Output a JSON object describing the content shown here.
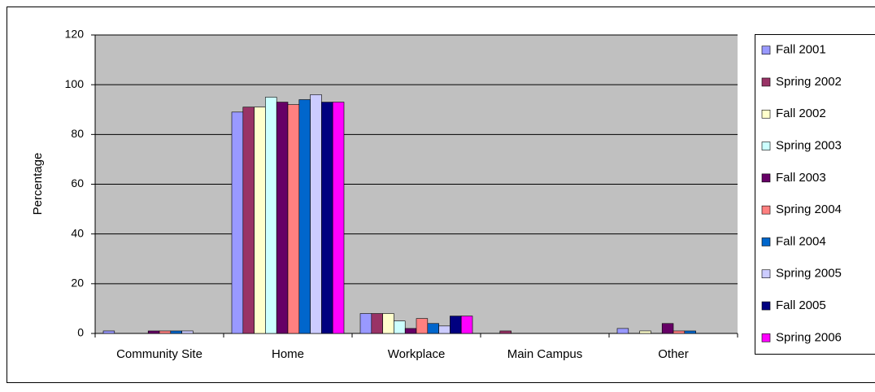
{
  "chart_data": {
    "type": "bar",
    "y_label": "Percentage",
    "categories": [
      "Community Site",
      "Home",
      "Workplace",
      "Main Campus",
      "Other"
    ],
    "series": [
      {
        "name": "Fall 2001",
        "color": "#9999ff",
        "values": [
          1,
          89,
          8,
          0,
          2
        ]
      },
      {
        "name": "Spring 2002",
        "color": "#993366",
        "values": [
          0,
          91,
          8,
          1,
          0
        ]
      },
      {
        "name": "Fall 2002",
        "color": "#ffffcc",
        "values": [
          0,
          91,
          8,
          0,
          1
        ]
      },
      {
        "name": "Spring 2003",
        "color": "#ccffff",
        "values": [
          0,
          95,
          5,
          0,
          0
        ]
      },
      {
        "name": "Fall 2003",
        "color": "#660066",
        "values": [
          1,
          93,
          2,
          0,
          4
        ]
      },
      {
        "name": "Spring 2004",
        "color": "#ff8080",
        "values": [
          1,
          92,
          6,
          0,
          1
        ]
      },
      {
        "name": "Fall 2004",
        "color": "#0066cc",
        "values": [
          1,
          94,
          4,
          0,
          1
        ]
      },
      {
        "name": "Spring 2005",
        "color": "#ccccff",
        "values": [
          1,
          96,
          3,
          0,
          0
        ]
      },
      {
        "name": "Fall 2005",
        "color": "#000080",
        "values": [
          0,
          93,
          7,
          0,
          0
        ]
      },
      {
        "name": "Spring 2006",
        "color": "#ff00ff",
        "values": [
          0,
          93,
          7,
          0,
          0
        ]
      }
    ],
    "ylim": [
      0,
      120
    ],
    "yticks": [
      0,
      20,
      40,
      60,
      80,
      100,
      120
    ],
    "grid": true,
    "legend": "right",
    "plot_background": "#c0c0c0"
  }
}
